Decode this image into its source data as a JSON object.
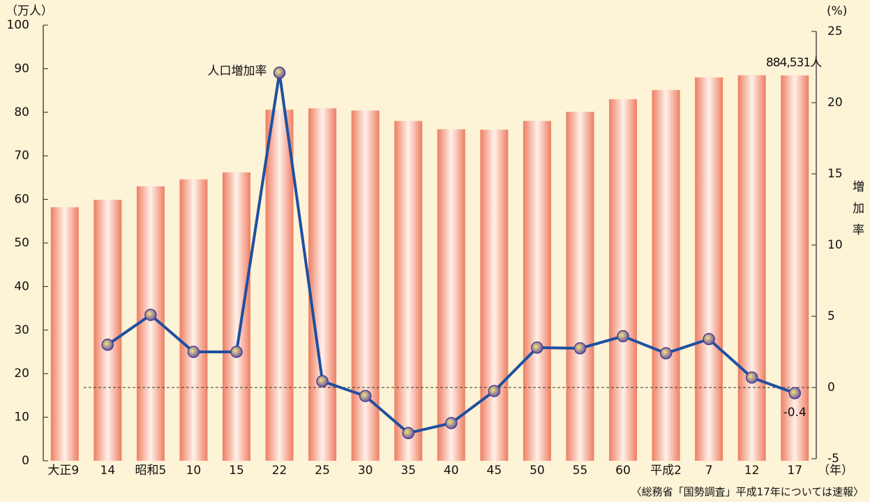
{
  "chart_data": {
    "type": "bar_line",
    "ylabel": "（万人）",
    "y2label": "増加率",
    "y2unit": "(%)",
    "xlabel": "（年）",
    "source": "〈総務省「国勢調査」平成17年については速報〉",
    "categories": [
      "大正9",
      "14",
      "昭和5",
      "10",
      "15",
      "22",
      "25",
      "30",
      "35",
      "40",
      "45",
      "50",
      "55",
      "60",
      "平成2",
      "7",
      "12",
      "17"
    ],
    "series": [
      {
        "type": "bar",
        "color": "#f0876c",
        "values": [
          58.2,
          59.9,
          63.0,
          64.6,
          66.2,
          80.6,
          80.9,
          80.4,
          78.0,
          76.1,
          76.0,
          78.0,
          80.1,
          83.0,
          85.1,
          88.0,
          88.5,
          88.4531
        ],
        "value_labels": [
          null,
          null,
          null,
          null,
          null,
          null,
          null,
          null,
          null,
          null,
          null,
          null,
          null,
          null,
          null,
          null,
          null,
          "884,531人"
        ]
      },
      {
        "type": "line",
        "name": "人口増加率",
        "color": "#1f4fa0",
        "axis": "y2",
        "values": [
          null,
          3.0,
          5.1,
          2.5,
          2.5,
          22.1,
          0.44,
          -0.6,
          -3.2,
          -2.5,
          -0.25,
          2.8,
          2.75,
          3.6,
          2.4,
          3.4,
          0.7,
          -0.4
        ],
        "value_labels": [
          null,
          null,
          null,
          null,
          null,
          null,
          null,
          null,
          null,
          null,
          null,
          null,
          null,
          null,
          null,
          null,
          null,
          "-0.4"
        ]
      }
    ],
    "ylim": [
      0,
      100
    ],
    "yticks": [
      0,
      10,
      20,
      30,
      40,
      50,
      60,
      70,
      80,
      90,
      100
    ],
    "y2lim": [
      -5,
      25
    ],
    "y2ticks": [
      -5,
      0,
      5,
      10,
      15,
      20,
      25
    ]
  }
}
